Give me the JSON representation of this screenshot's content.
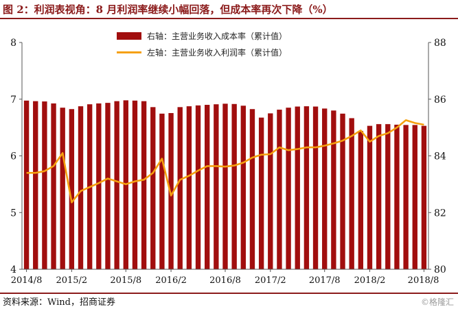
{
  "title": "图 2：利润表视角：8 月利润率继续小幅回落，但成本率再次下降（%）",
  "source": "资料来源：Wind，招商证券",
  "watermark": "©格隆汇",
  "colors": {
    "bar": "#A10E0E",
    "line": "#F5A00F",
    "title": "#8B1A1A"
  },
  "chart_data": {
    "type": "bar",
    "x": [
      "2014/8",
      "2014/9",
      "2014/10",
      "2014/11",
      "2014/12",
      "2015/2",
      "2015/3",
      "2015/4",
      "2015/5",
      "2015/6",
      "2015/7",
      "2015/8",
      "2015/9",
      "2015/10",
      "2015/11",
      "2015/12",
      "2016/2",
      "2016/3",
      "2016/4",
      "2016/5",
      "2016/6",
      "2016/7",
      "2016/8",
      "2016/9",
      "2016/10",
      "2016/11",
      "2016/12",
      "2017/2",
      "2017/3",
      "2017/4",
      "2017/5",
      "2017/6",
      "2017/7",
      "2017/8",
      "2017/9",
      "2017/10",
      "2017/11",
      "2017/12",
      "2018/2",
      "2018/3",
      "2018/4",
      "2018/5",
      "2018/6",
      "2018/7",
      "2018/8"
    ],
    "x_ticks": [
      "2014/8",
      "2015/2",
      "2015/8",
      "2016/2",
      "2016/8",
      "2017/2",
      "2017/8",
      "2018/2",
      "2018/8"
    ],
    "series": [
      {
        "name": "右轴：主营业务收入成本率（累计值）",
        "type": "bar",
        "axis": "right",
        "values": [
          85.95,
          85.93,
          85.92,
          85.85,
          85.7,
          85.65,
          85.75,
          85.82,
          85.85,
          85.87,
          85.93,
          85.96,
          85.95,
          85.93,
          85.72,
          85.49,
          85.51,
          85.72,
          85.75,
          85.78,
          85.8,
          85.82,
          85.84,
          85.83,
          85.77,
          85.65,
          85.35,
          85.5,
          85.63,
          85.7,
          85.74,
          85.75,
          85.74,
          85.67,
          85.6,
          85.49,
          85.33,
          84.88,
          85.06,
          85.12,
          85.12,
          85.1,
          85.09,
          85.09,
          85.06
        ]
      },
      {
        "name": "左轴：主营业务收入利润率（累计值）",
        "type": "line",
        "axis": "left",
        "values": [
          5.7,
          5.7,
          5.73,
          5.82,
          6.05,
          5.18,
          5.38,
          5.45,
          5.52,
          5.6,
          5.55,
          5.5,
          5.55,
          5.58,
          5.7,
          5.95,
          5.3,
          5.58,
          5.65,
          5.74,
          5.82,
          5.82,
          5.81,
          5.83,
          5.88,
          5.97,
          6.02,
          6.03,
          6.15,
          6.1,
          6.12,
          6.15,
          6.15,
          6.18,
          6.22,
          6.27,
          6.35,
          6.45,
          6.25,
          6.35,
          6.4,
          6.5,
          6.63,
          6.58,
          6.55
        ]
      }
    ],
    "y_left": {
      "min": 4,
      "max": 8,
      "ticks": [
        "4",
        "5",
        "6",
        "7",
        "8"
      ]
    },
    "y_right": {
      "min": 80,
      "max": 88,
      "ticks": [
        "80",
        "82",
        "84",
        "86",
        "88"
      ]
    },
    "grid": false,
    "legend_position": "top-center"
  }
}
